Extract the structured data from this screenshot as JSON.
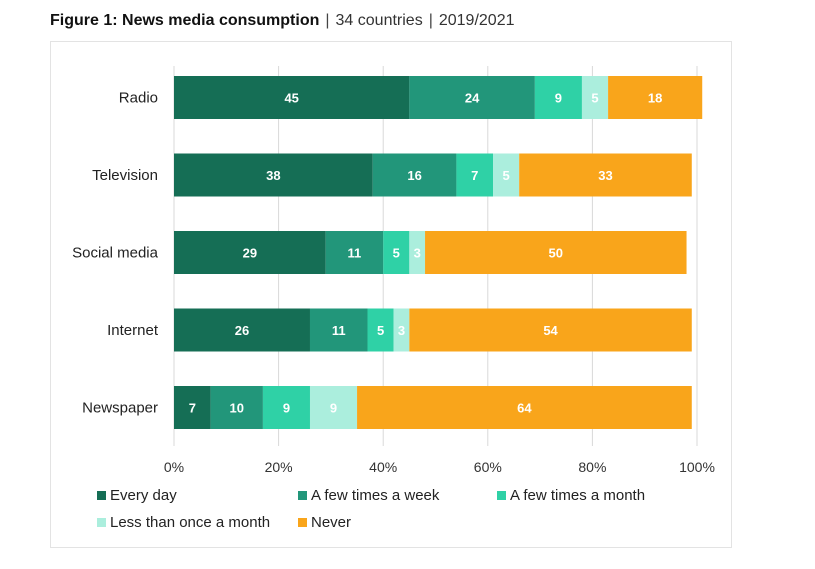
{
  "title": {
    "bold": "Figure 1: News media consumption",
    "sep1": "|",
    "countries": "34 countries",
    "sep2": "|",
    "years": "2019/2021"
  },
  "colors": {
    "every_day": "#156e55",
    "few_week": "#22967a",
    "few_month": "#2fd1a6",
    "less_month": "#abeedd",
    "never": "#f9a51b",
    "gridline": "#d9d9d9"
  },
  "chart_data": {
    "type": "bar",
    "orientation": "horizontal",
    "stacked": true,
    "categories": [
      "Radio",
      "Television",
      "Social media",
      "Internet",
      "Newspaper"
    ],
    "series": [
      {
        "name": "Every day",
        "color_key": "every_day",
        "values": [
          45,
          38,
          29,
          26,
          7
        ]
      },
      {
        "name": "A few times a week",
        "color_key": "few_week",
        "values": [
          24,
          16,
          11,
          11,
          10
        ]
      },
      {
        "name": "A few times a month",
        "color_key": "few_month",
        "values": [
          9,
          7,
          5,
          5,
          9
        ]
      },
      {
        "name": "Less than once a month",
        "color_key": "less_month",
        "values": [
          5,
          5,
          3,
          3,
          9
        ]
      },
      {
        "name": "Never",
        "color_key": "never",
        "values": [
          18,
          33,
          50,
          54,
          64
        ]
      }
    ],
    "x_ticks": [
      "0%",
      "20%",
      "40%",
      "60%",
      "80%",
      "100%"
    ],
    "xlim": [
      0,
      100
    ],
    "grid": "vertical",
    "legend_position": "bottom"
  }
}
